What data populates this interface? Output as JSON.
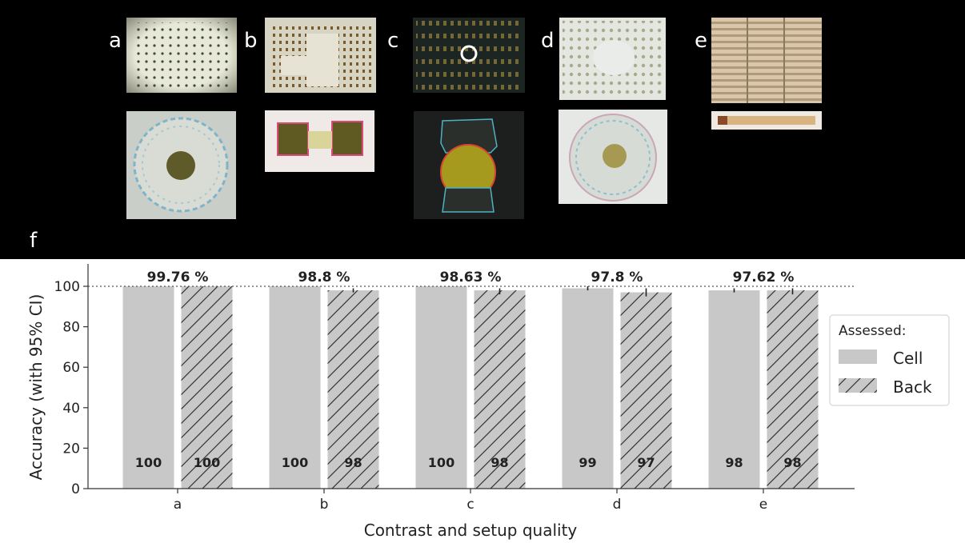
{
  "panels": [
    {
      "letter": "a"
    },
    {
      "letter": "b"
    },
    {
      "letter": "c"
    },
    {
      "letter": "d"
    },
    {
      "letter": "e"
    }
  ],
  "chart_label": "f",
  "colors": {
    "bar_fill": "#c8c8c8",
    "hatch": "#333333",
    "reference_line": "#555555",
    "background": "#000000"
  },
  "chart_data": {
    "type": "bar",
    "categories": [
      "a",
      "b",
      "c",
      "d",
      "e"
    ],
    "series": [
      {
        "name": "Cell",
        "values": [
          100,
          100,
          100,
          99,
          98
        ],
        "ci_low": [
          100,
          100,
          100,
          98,
          97
        ],
        "ci_high": [
          100,
          100,
          100,
          100,
          99
        ],
        "pattern": "solid"
      },
      {
        "name": "Back",
        "values": [
          100,
          98,
          98,
          97,
          98
        ],
        "ci_low": [
          100,
          97,
          96,
          95,
          96
        ],
        "ci_high": [
          100,
          99,
          99,
          99,
          99
        ],
        "pattern": "hatch"
      }
    ],
    "value_labels": [
      [
        "100",
        "100"
      ],
      [
        "100",
        "98"
      ],
      [
        "100",
        "98"
      ],
      [
        "99",
        "97"
      ],
      [
        "98",
        "98"
      ]
    ],
    "overall_labels": [
      "99.76 %",
      "98.8 %",
      "98.63 %",
      "97.8 %",
      "97.62 %"
    ],
    "reference_line": 100,
    "xlabel": "Contrast and setup quality",
    "ylabel": "Accuracy (with 95% CI)",
    "ylim": [
      0,
      100
    ],
    "yticks": [
      0,
      20,
      40,
      60,
      80,
      100
    ],
    "legend": {
      "title": "Assessed:",
      "entries": [
        "Cell",
        "Back"
      ],
      "placement": "right"
    },
    "grid": false
  }
}
